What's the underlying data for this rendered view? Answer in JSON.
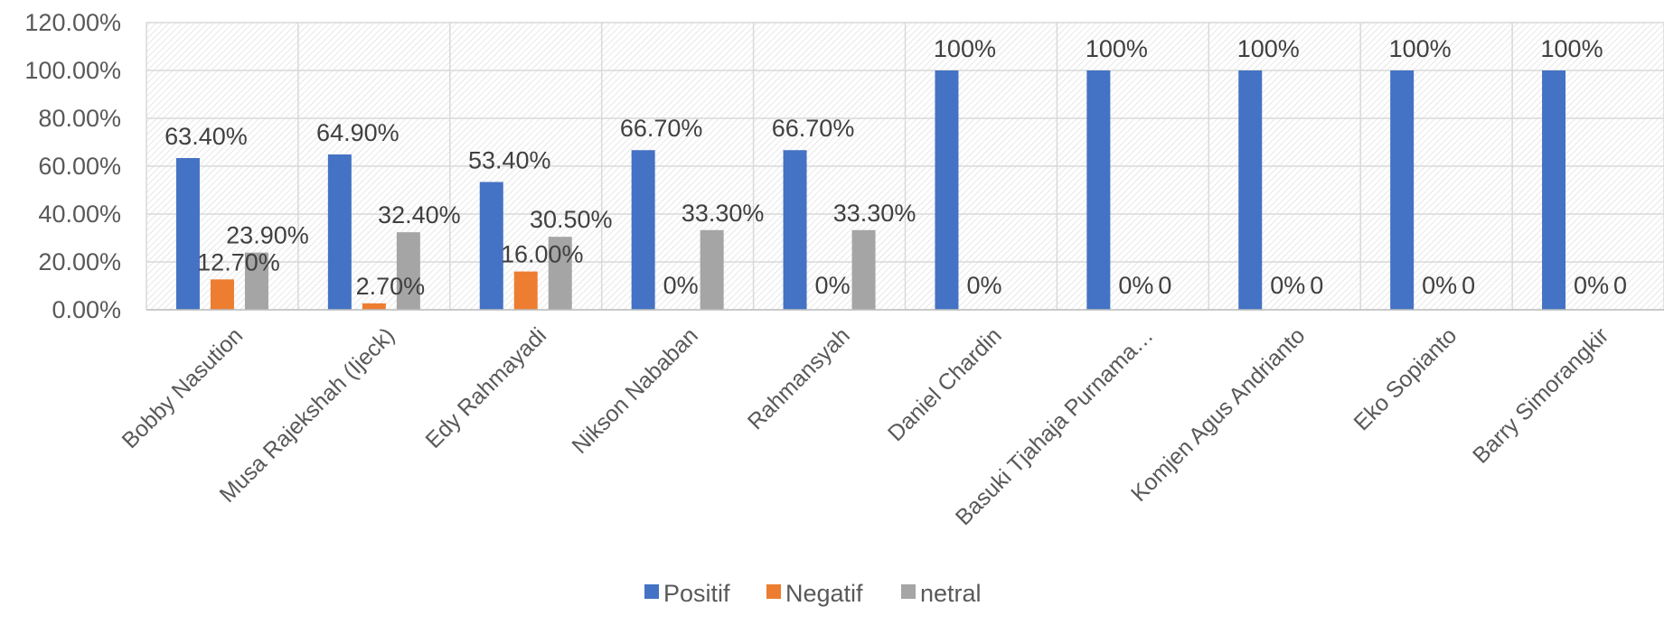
{
  "chart_data": {
    "type": "bar",
    "title": "",
    "xlabel": "",
    "ylabel": "",
    "ylim": [
      0,
      1.2
    ],
    "y_ticks": [
      "0.00%",
      "20.00%",
      "40.00%",
      "60.00%",
      "80.00%",
      "100.00%",
      "120.00%"
    ],
    "grid": true,
    "legend_position": "bottom",
    "categories": [
      "Bobby Nasution",
      "Musa Rajekshah (Ijeck)",
      "Edy Rahmayadi",
      "Nikson Nababan",
      "Rahmansyah",
      "Daniel Chardin",
      "Basuki Tjahaja Purnama…",
      "Komjen Agus Andrianto",
      "Eko Sopianto",
      "Barry Simorangkir"
    ],
    "series": [
      {
        "name": "Positif",
        "color": "#4472C4",
        "values": [
          0.634,
          0.649,
          0.534,
          0.667,
          0.667,
          1.0,
          1.0,
          1.0,
          1.0,
          1.0
        ],
        "labels": [
          "63.40%",
          "64.90%",
          "53.40%",
          "66.70%",
          "66.70%",
          "100%",
          "100%",
          "100%",
          "100%",
          "100%"
        ]
      },
      {
        "name": "Negatif",
        "color": "#ED7D31",
        "values": [
          0.127,
          0.027,
          0.16,
          0,
          0,
          0,
          0,
          0,
          0,
          0
        ],
        "labels": [
          "12.70%",
          "2.70%",
          "16.00%",
          "0%",
          "0%",
          "0%",
          "0%",
          "0%",
          "0%",
          "0%"
        ]
      },
      {
        "name": "netral",
        "color": "#A5A5A5",
        "values": [
          0.239,
          0.324,
          0.305,
          0.333,
          0.333,
          0,
          0,
          0,
          0,
          0
        ],
        "labels": [
          "23.90%",
          "32.40%",
          "30.50%",
          "33.30%",
          "33.30%",
          "",
          "0",
          "0",
          "0",
          "0"
        ]
      }
    ]
  }
}
